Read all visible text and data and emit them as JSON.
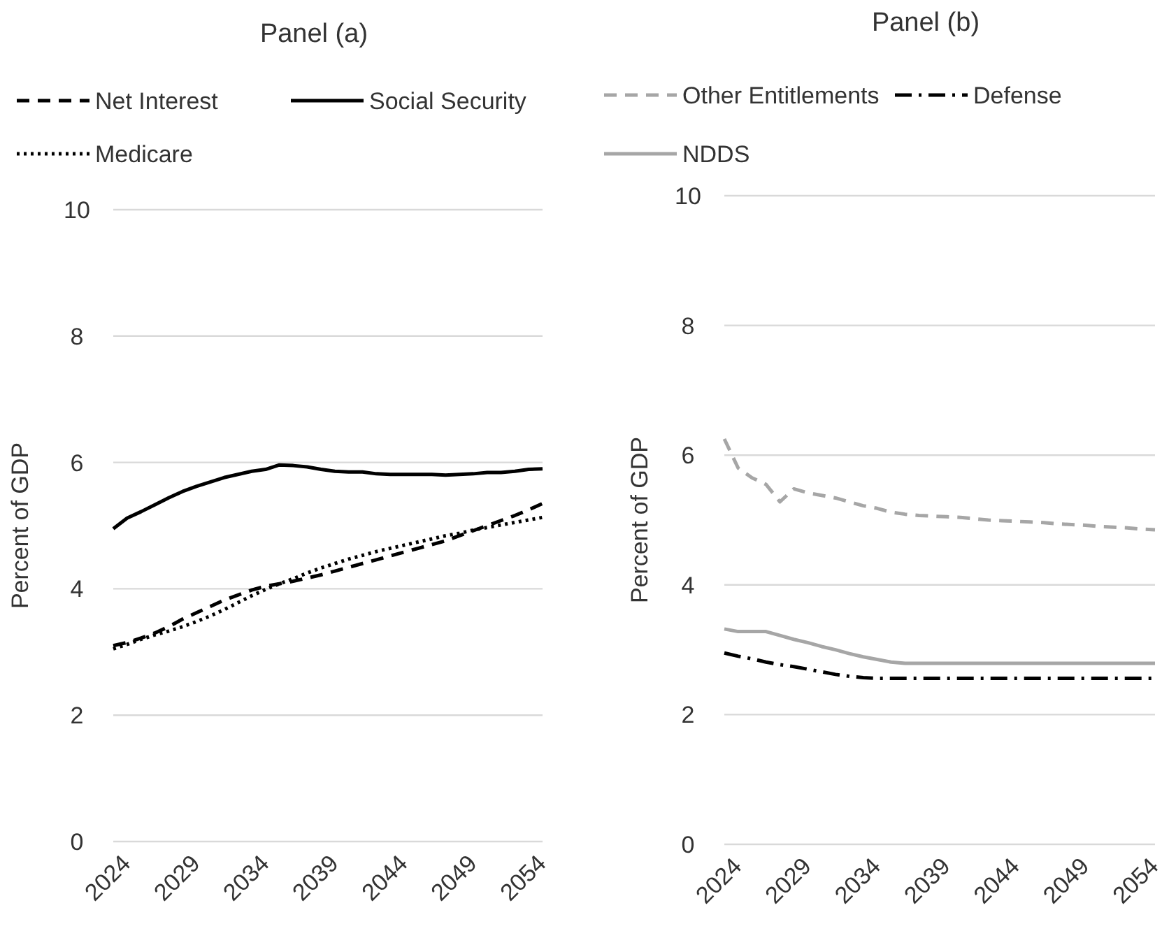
{
  "chart_data": [
    {
      "type": "line",
      "title": "Panel (a)",
      "ylabel": "Percent of GDP",
      "x": [
        2024,
        2025,
        2026,
        2027,
        2028,
        2029,
        2030,
        2031,
        2032,
        2033,
        2034,
        2035,
        2036,
        2037,
        2038,
        2039,
        2040,
        2041,
        2042,
        2043,
        2044,
        2045,
        2046,
        2047,
        2048,
        2049,
        2050,
        2051,
        2052,
        2053,
        2054,
        2055
      ],
      "xlim": [
        2024,
        2055
      ],
      "xticks": [
        2024,
        2029,
        2034,
        2039,
        2044,
        2049,
        2054
      ],
      "ylim": [
        0,
        10
      ],
      "yticks": [
        0,
        2,
        4,
        6,
        8,
        10
      ],
      "grid": "y",
      "legend": "top",
      "series": [
        {
          "name": "Net Interest",
          "color": "#000000",
          "line_style": "dashed",
          "values": [
            3.1,
            3.15,
            3.22,
            3.3,
            3.4,
            3.52,
            3.62,
            3.72,
            3.82,
            3.9,
            3.98,
            4.04,
            4.08,
            4.12,
            4.17,
            4.22,
            4.28,
            4.34,
            4.4,
            4.46,
            4.52,
            4.58,
            4.64,
            4.7,
            4.76,
            4.84,
            4.92,
            5.0,
            5.08,
            5.16,
            5.25,
            5.35
          ]
        },
        {
          "name": "Social Security",
          "color": "#000000",
          "line_style": "solid",
          "values": [
            4.95,
            5.12,
            5.22,
            5.33,
            5.44,
            5.54,
            5.62,
            5.69,
            5.76,
            5.81,
            5.86,
            5.89,
            5.96,
            5.95,
            5.93,
            5.89,
            5.86,
            5.85,
            5.85,
            5.82,
            5.81,
            5.81,
            5.81,
            5.81,
            5.8,
            5.81,
            5.82,
            5.84,
            5.84,
            5.86,
            5.89,
            5.9
          ]
        },
        {
          "name": "Medicare",
          "color": "#000000",
          "line_style": "dotted",
          "values": [
            3.05,
            3.12,
            3.2,
            3.27,
            3.33,
            3.4,
            3.48,
            3.57,
            3.67,
            3.78,
            3.89,
            3.99,
            4.08,
            4.16,
            4.25,
            4.33,
            4.4,
            4.47,
            4.53,
            4.59,
            4.64,
            4.69,
            4.74,
            4.79,
            4.84,
            4.88,
            4.93,
            4.97,
            5.01,
            5.05,
            5.09,
            5.13
          ]
        }
      ]
    },
    {
      "type": "line",
      "title": "Panel (b)",
      "ylabel": "Percent of GDP",
      "x": [
        2024,
        2025,
        2026,
        2027,
        2028,
        2029,
        2030,
        2031,
        2032,
        2033,
        2034,
        2035,
        2036,
        2037,
        2038,
        2039,
        2040,
        2041,
        2042,
        2043,
        2044,
        2045,
        2046,
        2047,
        2048,
        2049,
        2050,
        2051,
        2052,
        2053,
        2054,
        2055
      ],
      "xlim": [
        2024,
        2055
      ],
      "xticks": [
        2024,
        2029,
        2034,
        2039,
        2044,
        2049,
        2054
      ],
      "ylim": [
        0,
        10
      ],
      "yticks": [
        0,
        2,
        4,
        6,
        8,
        10
      ],
      "grid": "y",
      "legend": "top",
      "series": [
        {
          "name": "Other Entitlements",
          "color": "#a6a6a6",
          "line_style": "dashed",
          "values": [
            6.25,
            5.8,
            5.65,
            5.55,
            5.28,
            5.48,
            5.42,
            5.38,
            5.34,
            5.28,
            5.22,
            5.18,
            5.12,
            5.09,
            5.07,
            5.06,
            5.05,
            5.04,
            5.02,
            5.0,
            4.99,
            4.98,
            4.97,
            4.96,
            4.94,
            4.93,
            4.92,
            4.9,
            4.89,
            4.88,
            4.86,
            4.85
          ]
        },
        {
          "name": "Defense",
          "color": "#000000",
          "line_style": "dashdot",
          "values": [
            2.95,
            2.9,
            2.86,
            2.81,
            2.77,
            2.74,
            2.7,
            2.66,
            2.62,
            2.59,
            2.57,
            2.56,
            2.56,
            2.56,
            2.56,
            2.56,
            2.56,
            2.56,
            2.56,
            2.56,
            2.56,
            2.56,
            2.56,
            2.56,
            2.56,
            2.56,
            2.56,
            2.56,
            2.56,
            2.56,
            2.56,
            2.56
          ]
        },
        {
          "name": "NDDS",
          "color": "#a6a6a6",
          "line_style": "solid",
          "values": [
            3.32,
            3.28,
            3.28,
            3.28,
            3.22,
            3.16,
            3.11,
            3.05,
            3.0,
            2.94,
            2.89,
            2.85,
            2.81,
            2.79,
            2.79,
            2.79,
            2.79,
            2.79,
            2.79,
            2.79,
            2.79,
            2.79,
            2.79,
            2.79,
            2.79,
            2.79,
            2.79,
            2.79,
            2.79,
            2.79,
            2.79,
            2.79
          ]
        }
      ]
    }
  ]
}
